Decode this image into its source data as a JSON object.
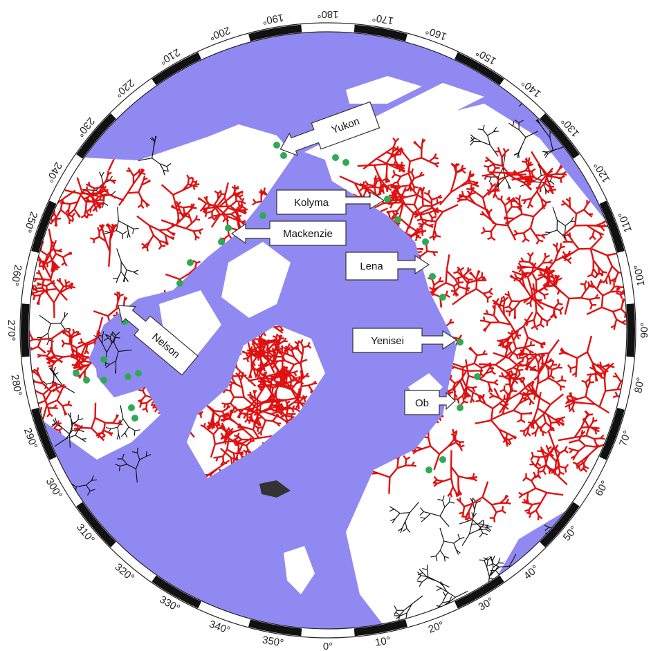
{
  "longitude_labels": [
    "0°",
    "10°",
    "20°",
    "30°",
    "40°",
    "50°",
    "60°",
    "70°",
    "80°",
    "90°",
    "100°",
    "110°",
    "120°",
    "130°",
    "140°",
    "150°",
    "160°",
    "170°",
    "180°",
    "190°",
    "200°",
    "210°",
    "220°",
    "230°",
    "240°",
    "250°",
    "260°",
    "270°",
    "280°",
    "290°",
    "300°",
    "310°",
    "320°",
    "330°",
    "340°",
    "350°"
  ],
  "rivers": [
    "Yukon",
    "Kolyma",
    "Mackenzie",
    "Lena",
    "Yenisei",
    "Ob",
    "Nelson"
  ]
}
